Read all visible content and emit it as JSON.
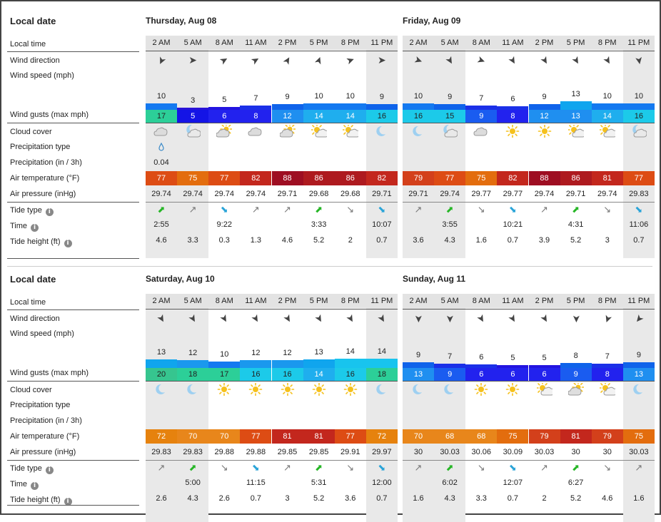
{
  "labels": {
    "local_date": "Local date",
    "local_time": "Local time",
    "wind_direction": "Wind direction",
    "wind_speed": "Wind speed  (mph)",
    "wind_gusts": "Wind gusts  (max mph)",
    "cloud_cover": "Cloud cover",
    "precip_type": "Precipitation type",
    "precipitation": "Precipitation  (in / 3h)",
    "air_temperature": "Air temperature  (°F)",
    "air_pressure": "Air pressure  (inHg)",
    "tide_type": "Tide type",
    "time": "Time",
    "tide_height": "Tide height  (ft)",
    "info_glyph": "i"
  },
  "hours": [
    "2 AM",
    "5 AM",
    "8 AM",
    "11 AM",
    "2 PM",
    "5 PM",
    "8 PM",
    "11 PM"
  ],
  "colors": {
    "gust_blue": "#3b8fe8",
    "wind_speed_bar": "#0c68e6"
  },
  "days": [
    {
      "title": "Thursday, Aug 08",
      "wind_dir": [
        205,
        90,
        60,
        60,
        30,
        20,
        70,
        90
      ],
      "wind_speed": [
        10,
        3,
        5,
        7,
        9,
        10,
        10,
        9
      ],
      "gusts": [
        17,
        5,
        6,
        8,
        12,
        14,
        14,
        16
      ],
      "cloud": [
        "cloudy",
        "partly-night",
        "partly-sun",
        "cloudy",
        "partly-sun",
        "sun-cloud",
        "sun-cloud",
        "moon"
      ],
      "precip_type": [
        "drop",
        "",
        "",
        "",
        "",
        "",
        "",
        ""
      ],
      "precip": [
        "0.04",
        "",
        "",
        "",
        "",
        "",
        "",
        ""
      ],
      "temp": [
        77,
        75,
        77,
        82,
        88,
        86,
        86,
        82
      ],
      "pressure": [
        "29.74",
        "29.74",
        "29.74",
        "29.74",
        "29.71",
        "29.68",
        "29.68",
        "29.71"
      ],
      "tide_type": [
        "high",
        "rising",
        "low",
        "rising",
        "rising",
        "high",
        "falling",
        "low"
      ],
      "tide_time": [
        "2:55",
        "",
        "9:22",
        "",
        "",
        "3:33",
        "",
        "10:07"
      ],
      "tide_height": [
        "4.6",
        "3.3",
        "0.3",
        "1.3",
        "4.6",
        "5.2",
        "2",
        "0.7"
      ]
    },
    {
      "title": "Friday, Aug 09",
      "wind_dir": [
        110,
        150,
        110,
        150,
        150,
        150,
        150,
        170
      ],
      "wind_speed": [
        10,
        9,
        7,
        6,
        9,
        13,
        10,
        10
      ],
      "gusts": [
        16,
        15,
        9,
        8,
        12,
        13,
        14,
        16
      ],
      "cloud": [
        "moon",
        "partly-night",
        "cloudy",
        "sun",
        "sun",
        "sun-cloud",
        "sun-cloud",
        "partly-night"
      ],
      "precip_type": [
        "",
        "",
        "",
        "",
        "",
        "",
        "",
        ""
      ],
      "precip": [
        "",
        "",
        "",
        "",
        "",
        "",
        "",
        ""
      ],
      "temp": [
        79,
        77,
        75,
        82,
        88,
        86,
        81,
        77
      ],
      "pressure": [
        "29.71",
        "29.74",
        "29.77",
        "29.77",
        "29.74",
        "29.71",
        "29.74",
        "29.83"
      ],
      "tide_type": [
        "rising",
        "high",
        "falling",
        "low",
        "rising",
        "high",
        "falling",
        "low"
      ],
      "tide_time": [
        "",
        "3:55",
        "",
        "10:21",
        "",
        "4:31",
        "",
        "11:06"
      ],
      "tide_height": [
        "3.6",
        "4.3",
        "1.6",
        "0.7",
        "3.9",
        "5.2",
        "3",
        "0.7"
      ]
    },
    {
      "title": "Saturday, Aug 10",
      "wind_dir": [
        150,
        150,
        150,
        150,
        150,
        150,
        150,
        150
      ],
      "wind_speed": [
        13,
        12,
        10,
        12,
        12,
        13,
        14,
        14
      ],
      "gusts": [
        20,
        18,
        17,
        16,
        16,
        14,
        16,
        18
      ],
      "cloud": [
        "moon",
        "moon",
        "sun",
        "sun",
        "sun",
        "sun",
        "sun",
        "moon"
      ],
      "precip_type": [
        "",
        "",
        "",
        "",
        "",
        "",
        "",
        ""
      ],
      "precip": [
        "",
        "",
        "",
        "",
        "",
        "",
        "",
        ""
      ],
      "temp": [
        72,
        70,
        70,
        77,
        81,
        81,
        77,
        72
      ],
      "pressure": [
        "29.83",
        "29.83",
        "29.88",
        "29.88",
        "29.85",
        "29.85",
        "29.91",
        "29.97"
      ],
      "tide_type": [
        "rising",
        "high",
        "falling",
        "low",
        "rising",
        "high",
        "falling",
        "low"
      ],
      "tide_time": [
        "",
        "5:00",
        "",
        "11:15",
        "",
        "5:31",
        "",
        "12:00"
      ],
      "tide_height": [
        "2.6",
        "4.3",
        "2.6",
        "0.7",
        "3",
        "5.2",
        "3.6",
        "0.7"
      ]
    },
    {
      "title": "Sunday, Aug 11",
      "wind_dir": [
        180,
        180,
        150,
        150,
        150,
        180,
        200,
        220
      ],
      "wind_speed": [
        9,
        7,
        6,
        5,
        5,
        8,
        7,
        9
      ],
      "gusts": [
        13,
        9,
        6,
        6,
        6,
        9,
        8,
        13
      ],
      "cloud": [
        "moon",
        "moon",
        "sun",
        "sun",
        "sun-cloud",
        "partly-sun",
        "sun-cloud",
        "moon"
      ],
      "precip_type": [
        "",
        "",
        "",
        "",
        "",
        "",
        "",
        ""
      ],
      "precip": [
        "",
        "",
        "",
        "",
        "",
        "",
        "",
        ""
      ],
      "temp": [
        70,
        68,
        68,
        75,
        79,
        81,
        79,
        75
      ],
      "pressure": [
        "30",
        "30.03",
        "30.06",
        "30.09",
        "30.03",
        "30",
        "30",
        "30.03"
      ],
      "tide_type": [
        "rising",
        "high",
        "falling",
        "low",
        "rising",
        "high",
        "falling",
        "rising"
      ],
      "tide_time": [
        "",
        "6:02",
        "",
        "12:07",
        "",
        "6:27",
        "",
        ""
      ],
      "tide_height": [
        "1.6",
        "4.3",
        "3.3",
        "0.7",
        "2",
        "5.2",
        "4.6",
        "1.6"
      ]
    }
  ]
}
